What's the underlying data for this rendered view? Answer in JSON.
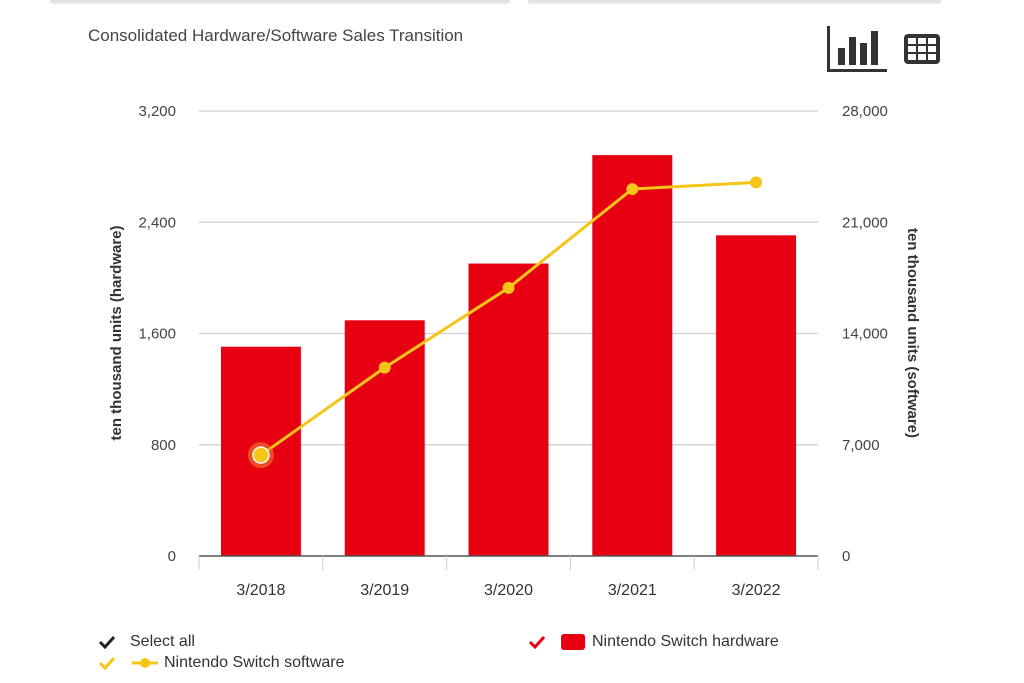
{
  "header": {
    "title": "Consolidated Hardware/Software Sales Transition",
    "chart_view_icon": "bar-chart-icon",
    "table_view_icon": "table-icon"
  },
  "legend": {
    "select_all": {
      "label": "Select all",
      "checked": true,
      "color": "#222222"
    },
    "items": [
      {
        "label": "Nintendo Switch software",
        "checked": true,
        "color": "#f5c518",
        "marker": "line-dot"
      },
      {
        "label": "Nintendo Switch hardware",
        "checked": true,
        "color": "#e60012",
        "marker": "rounded-square"
      }
    ]
  },
  "chart_data": {
    "type": "bar",
    "title": "Consolidated Hardware/Software Sales Transition",
    "categories": [
      "3/2018",
      "3/2019",
      "3/2020",
      "3/2021",
      "3/2022"
    ],
    "series": [
      {
        "name": "Nintendo Switch hardware",
        "type": "bar",
        "axis": "left",
        "color": "#e60012",
        "values": [
          1505,
          1695,
          2103,
          2883,
          2306
        ]
      },
      {
        "name": "Nintendo Switch software",
        "type": "line",
        "axis": "right",
        "color": "#f5c518",
        "values": [
          6351,
          11855,
          16872,
          23088,
          23507
        ],
        "highlighted_index": 0
      }
    ],
    "left_axis": {
      "label": "ten thousand units (hardware)",
      "range": [
        0,
        3200
      ],
      "ticks": [
        0,
        800,
        1600,
        2400,
        3200
      ],
      "tick_labels": [
        "0",
        "800",
        "1,600",
        "2,400",
        "3,200"
      ]
    },
    "right_axis": {
      "label": "ten thousand units (software)",
      "range": [
        0,
        28000
      ],
      "ticks": [
        0,
        7000,
        14000,
        21000,
        28000
      ],
      "tick_labels": [
        "0",
        "7,000",
        "14,000",
        "21,000",
        "28,000"
      ]
    },
    "xlabel": "",
    "grid": true,
    "legend_position": "bottom"
  }
}
